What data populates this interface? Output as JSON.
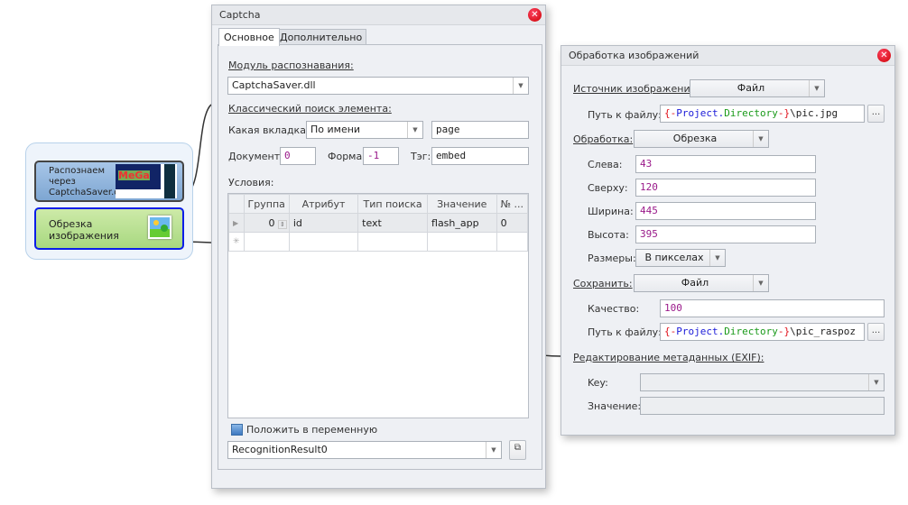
{
  "flow": {
    "node1": {
      "label": "Распознаем через CaptchaSaver.dll",
      "thumb_text": "MeGa"
    },
    "node2": {
      "label": "Обрезка изображения"
    }
  },
  "captcha": {
    "title": "Captcha",
    "tabs": [
      {
        "label": "Основное",
        "active": true
      },
      {
        "label": "Дополнительно",
        "active": false
      }
    ],
    "module_label": "Модуль распознавания:",
    "module_value": "CaptchaSaver.dll",
    "classic_label": "Классический поиск элемента:",
    "tab_label": "Какая вкладка:",
    "tab_mode": "По имени",
    "tab_value": "page",
    "doc_label": "Документ:",
    "doc_value": "0",
    "form_label": "Форма:",
    "form_value": "-1",
    "tag_label": "Тэг:",
    "tag_value": "embed",
    "conditions_label": "Условия:",
    "columns": [
      "Группа",
      "Атрибут",
      "Тип поиска",
      "Значение",
      "№ ..."
    ],
    "rows": [
      [
        "0",
        "id",
        "text",
        "flash_app",
        "0"
      ]
    ],
    "save_var_label": "Положить в переменную",
    "save_var_checked": false,
    "var_value": "RecognitionResult0"
  },
  "imgproc": {
    "title": "Обработка изображений",
    "source_label": "Источник изображения:",
    "source_value": "Файл",
    "path_label": "Путь к файлу:",
    "path1": {
      "open": "{-",
      "proj": "Project.",
      "dir": "Directory",
      "close": "-}",
      "rest": "\\pic.jpg"
    },
    "browse": "...",
    "proc_label": "Обработка:",
    "proc_value": "Обрезка",
    "left_label": "Слева:",
    "left_value": "43",
    "top_label": "Сверху:",
    "top_value": "120",
    "width_label": "Ширина:",
    "width_value": "445",
    "height_label": "Высота:",
    "height_value": "395",
    "size_label": "Размеры:",
    "size_value": "В пикселах",
    "save_label": "Сохранить:",
    "save_value": "Файл",
    "quality_label": "Качество:",
    "quality_value": "100",
    "path2": {
      "open": "{-",
      "proj": "Project.",
      "dir": "Directory",
      "close": "-}",
      "rest": "\\pic_raspoz"
    },
    "exif_label": "Редактирование метаданных (EXIF):",
    "key_label": "Key:",
    "key_value": "",
    "value_label": "Значение:",
    "value_value": ""
  },
  "colors": {
    "accent": "#0a1ee8",
    "node1": "#8fb3dc",
    "node2": "#b5de8c",
    "path_red": "#e0101a",
    "path_blue": "#1a1ad8",
    "path_green": "#1a9a1a",
    "number": "#9a1a8a"
  }
}
